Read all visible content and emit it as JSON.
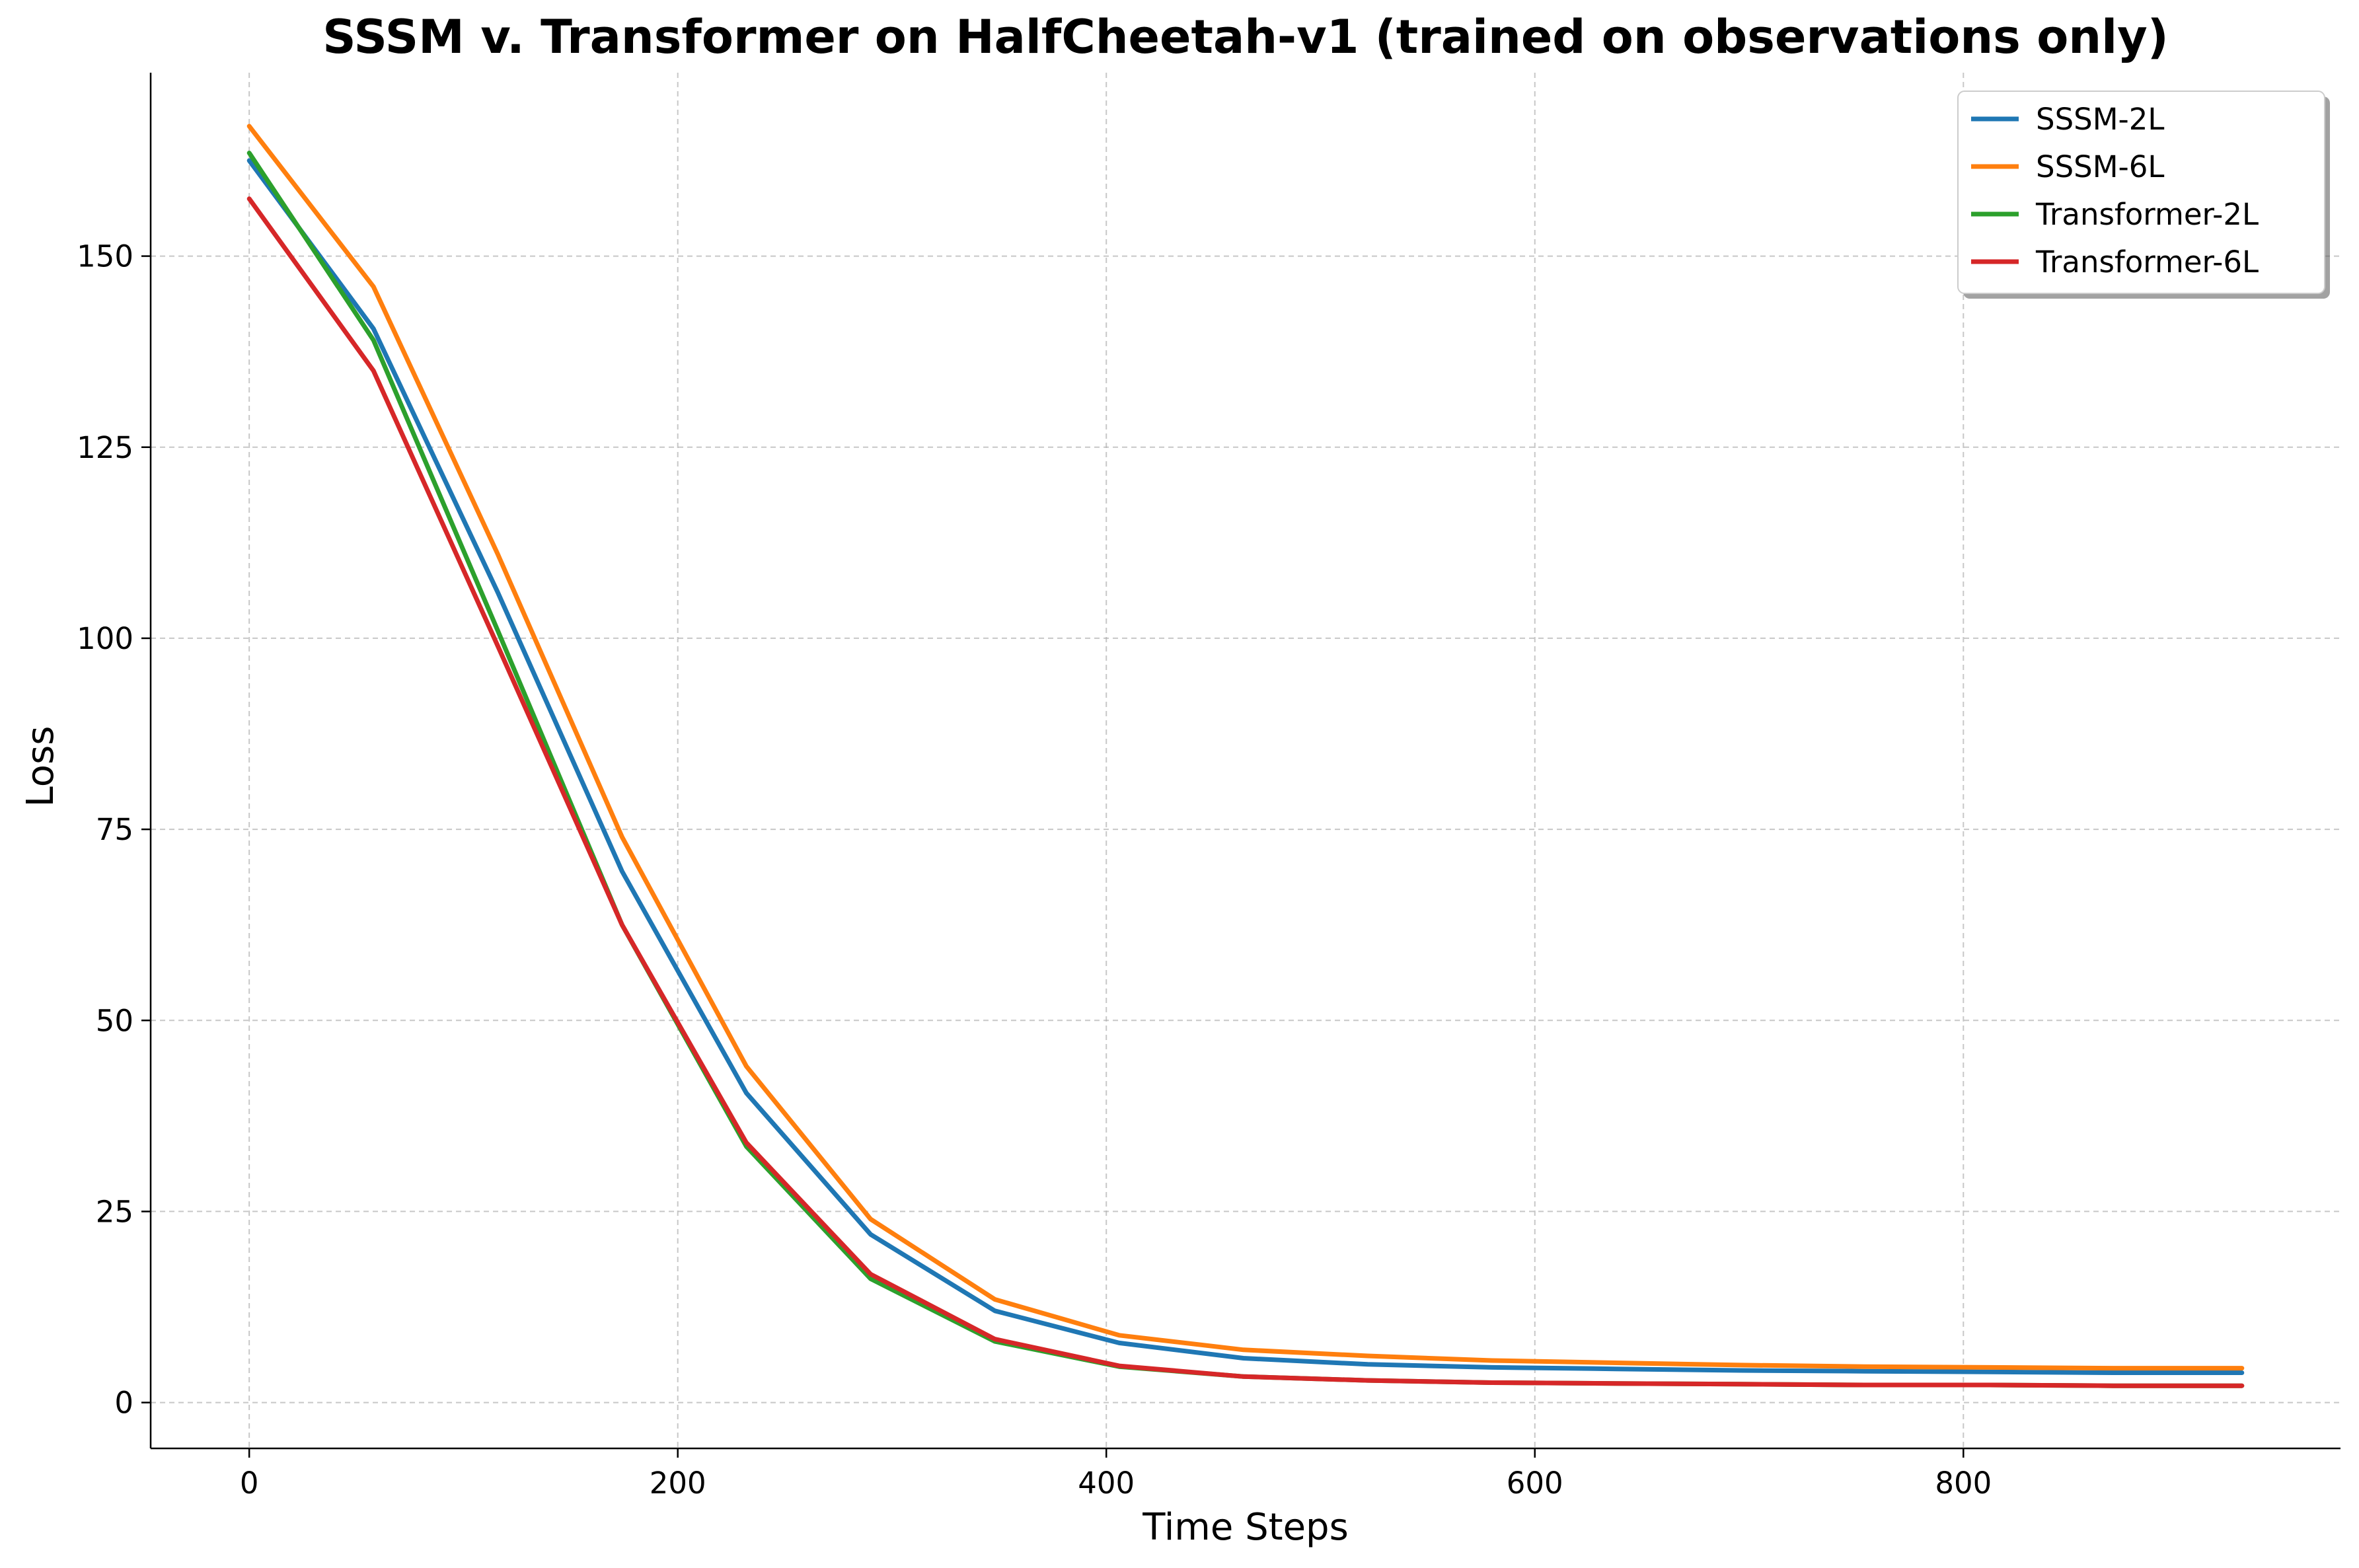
{
  "chart_data": {
    "type": "line",
    "title": "SSSM v. Transformer on HalfCheetah-v1 (trained on observations only)",
    "xlabel": "Time Steps",
    "ylabel": "Loss",
    "xlim": [
      -46,
      976
    ],
    "ylim": [
      -6,
      174
    ],
    "xticks": [
      0,
      200,
      400,
      600,
      800
    ],
    "yticks": [
      0,
      25,
      50,
      75,
      100,
      125,
      150
    ],
    "grid": true,
    "legend_position": "top-right",
    "x": [
      0,
      58,
      116,
      174,
      232,
      290,
      348,
      406,
      464,
      522,
      580,
      638,
      696,
      754,
      812,
      870,
      930
    ],
    "series": [
      {
        "name": "SSSM-2L",
        "color": "#1f77b4",
        "values": [
          162.5,
          140.5,
          106,
          69.5,
          40.5,
          22,
          12,
          7.8,
          5.8,
          5,
          4.6,
          4.4,
          4.2,
          4.1,
          4.0,
          3.9,
          3.9
        ]
      },
      {
        "name": "SSSM-6L",
        "color": "#ff7f0e",
        "values": [
          167,
          146,
          111,
          74,
          44,
          24,
          13.5,
          8.8,
          6.9,
          6.1,
          5.5,
          5.2,
          4.9,
          4.7,
          4.6,
          4.5,
          4.5
        ]
      },
      {
        "name": "Transformer-2L",
        "color": "#2ca02c",
        "values": [
          163.5,
          139,
          101,
          62.5,
          33.5,
          16.2,
          8.0,
          4.7,
          3.4,
          2.9,
          2.6,
          2.5,
          2.4,
          2.3,
          2.3,
          2.2,
          2.2
        ]
      },
      {
        "name": "Transformer-6L",
        "color": "#d62728",
        "values": [
          157.5,
          135,
          99,
          62.5,
          34,
          16.8,
          8.3,
          4.8,
          3.4,
          2.9,
          2.6,
          2.5,
          2.4,
          2.3,
          2.3,
          2.2,
          2.2
        ]
      }
    ]
  }
}
